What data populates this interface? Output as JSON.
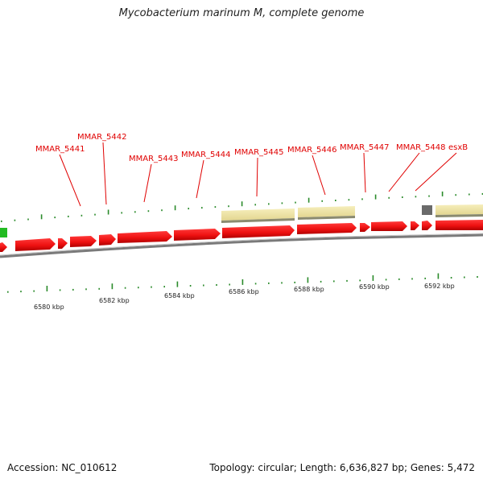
{
  "title": "Mycobacterium marinum M, complete genome",
  "footer": {
    "accession": "Accession: NC_010612",
    "topology": "Topology: circular; Length: 6,636,827 bp; Genes: 5,472"
  },
  "axis": {
    "unit": "kbp",
    "ticks": [
      {
        "label": "6580 kbp",
        "kbp": 6580
      },
      {
        "label": "6582 kbp",
        "kbp": 6582
      },
      {
        "label": "6584 kbp",
        "kbp": 6584
      },
      {
        "label": "6586 kbp",
        "kbp": 6586
      },
      {
        "label": "6588 kbp",
        "kbp": 6588
      },
      {
        "label": "6590 kbp",
        "kbp": 6590
      },
      {
        "label": "6592 kbp",
        "kbp": 6592
      }
    ]
  },
  "genes": [
    {
      "name": "MMAR_5441",
      "start_kbp": 6581.9,
      "end_kbp": 6582.6
    },
    {
      "name": "MMAR_5442",
      "start_kbp": 6582.7,
      "end_kbp": 6583.1
    },
    {
      "name": "MMAR_5443",
      "start_kbp": 6583.2,
      "end_kbp": 6584.9
    },
    {
      "name": "MMAR_5444",
      "start_kbp": 6585.0,
      "end_kbp": 6586.4
    },
    {
      "name": "MMAR_5445",
      "start_kbp": 6586.5,
      "end_kbp": 6589.4
    },
    {
      "name": "MMAR_5446",
      "start_kbp": 6589.5,
      "end_kbp": 6591.3
    },
    {
      "name": "MMAR_5447",
      "start_kbp": 6591.4,
      "end_kbp": 6591.7
    },
    {
      "name": "MMAR_5448",
      "start_kbp": 6591.8,
      "end_kbp": 6592.9
    },
    {
      "name": "esxB",
      "start_kbp": 6593.0,
      "end_kbp": 6593.3
    }
  ],
  "colors": {
    "gene": "#ee1111",
    "feature": "#f0e6a8",
    "dark_feature": "#6a6a6a",
    "green_feature": "#22bb22",
    "tick": "#2a8a2a",
    "backbone": "#808080",
    "label": "#e00000"
  }
}
